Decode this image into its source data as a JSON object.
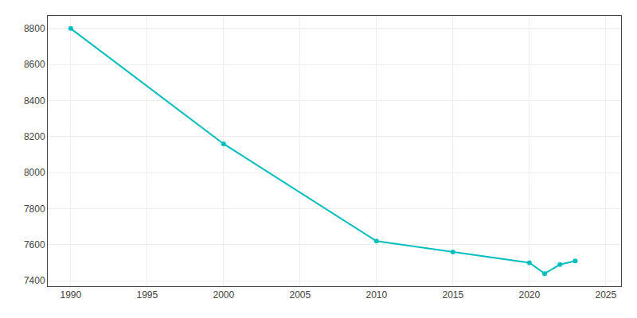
{
  "chart_data": {
    "type": "line",
    "x": [
      1990,
      2000,
      2010,
      2015,
      2020,
      2021,
      2022,
      2023
    ],
    "values": [
      8800,
      8160,
      7620,
      7560,
      7500,
      7440,
      7490,
      7510
    ],
    "color": "#00BEBE",
    "marker": "circle",
    "xlim": [
      1988.5,
      2026
    ],
    "ylim": [
      7370,
      8870
    ],
    "xticks": [
      1990,
      1995,
      2000,
      2005,
      2010,
      2015,
      2020,
      2025
    ],
    "yticks": [
      7400,
      7600,
      7800,
      8000,
      8200,
      8400,
      8600,
      8800
    ],
    "grid": true
  }
}
